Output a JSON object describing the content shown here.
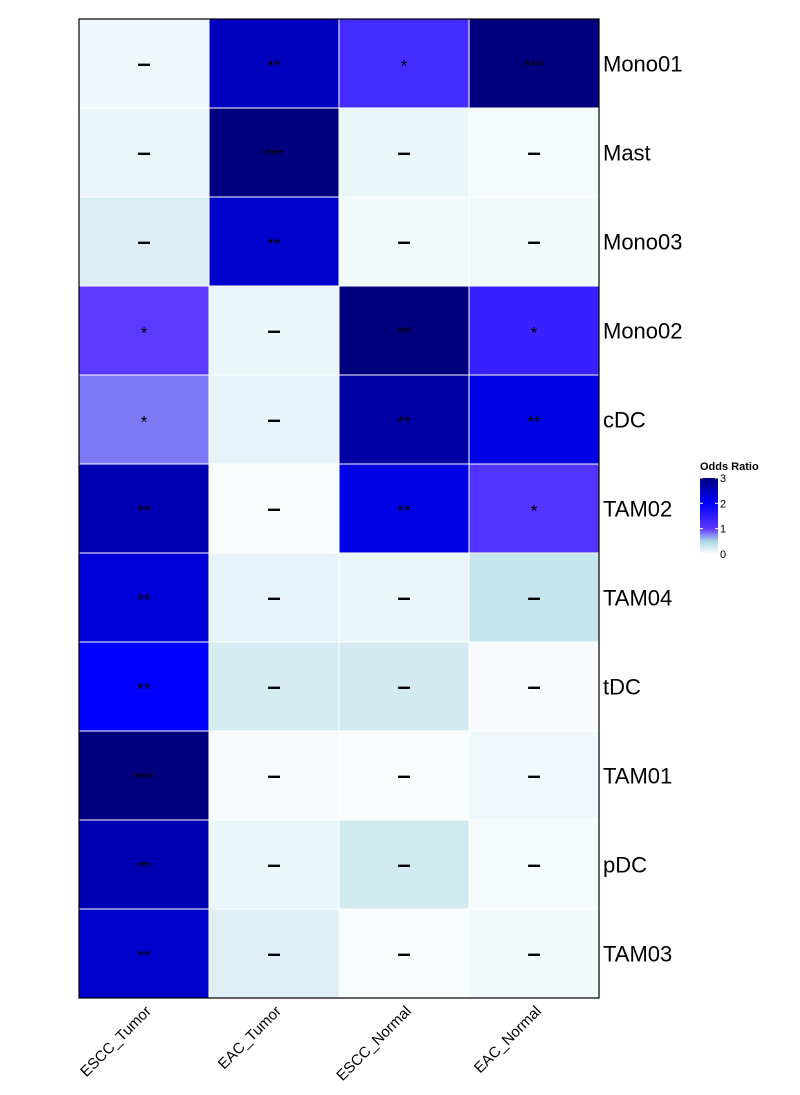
{
  "chart_data": {
    "type": "heatmap",
    "columns": [
      "ESCC_Tumor",
      "EAC_Tumor",
      "ESCC_Normal",
      "EAC_Normal"
    ],
    "rows": [
      "Mono01",
      "Mast",
      "Mono03",
      "Mono02",
      "cDC",
      "TAM02",
      "TAM04",
      "tDC",
      "TAM01",
      "pDC",
      "TAM03"
    ],
    "values": [
      [
        0.1,
        2.5,
        1.25,
        3.0
      ],
      [
        0.12,
        3.0,
        0.12,
        0.06
      ],
      [
        0.22,
        2.4,
        0.08,
        0.08
      ],
      [
        1.0,
        0.12,
        3.0,
        1.4
      ],
      [
        0.8,
        0.15,
        2.7,
        2.2
      ],
      [
        2.6,
        0.03,
        2.2,
        1.1
      ],
      [
        2.3,
        0.15,
        0.12,
        0.35
      ],
      [
        2.0,
        0.25,
        0.27,
        0.05
      ],
      [
        3.0,
        0.05,
        0.03,
        0.09
      ],
      [
        2.6,
        0.12,
        0.28,
        0.06
      ],
      [
        2.4,
        0.2,
        0.03,
        0.08
      ]
    ],
    "annotations": [
      [
        "–",
        "**",
        "*",
        "***"
      ],
      [
        "–",
        "***",
        "–",
        "–"
      ],
      [
        "–",
        "**",
        "–",
        "–"
      ],
      [
        "*",
        "–",
        "**",
        "*"
      ],
      [
        "*",
        "–",
        "**",
        "**"
      ],
      [
        "**",
        "–",
        "**",
        "*"
      ],
      [
        "**",
        "–",
        "–",
        "–"
      ],
      [
        "**",
        "–",
        "–",
        "–"
      ],
      [
        "***",
        "–",
        "–",
        "–"
      ],
      [
        "**",
        "–",
        "–",
        "–"
      ],
      [
        "**",
        "–",
        "–",
        "–"
      ]
    ],
    "legend": {
      "title": "Odds Ratio",
      "ticks": [
        0,
        1,
        2,
        3
      ],
      "range": [
        0,
        3
      ],
      "placement": "right"
    },
    "colors": {
      "low": "#ffffff",
      "light": "#add8e6",
      "mid": "#5b39ff",
      "high": "#0000ff",
      "max": "#00007f"
    }
  }
}
